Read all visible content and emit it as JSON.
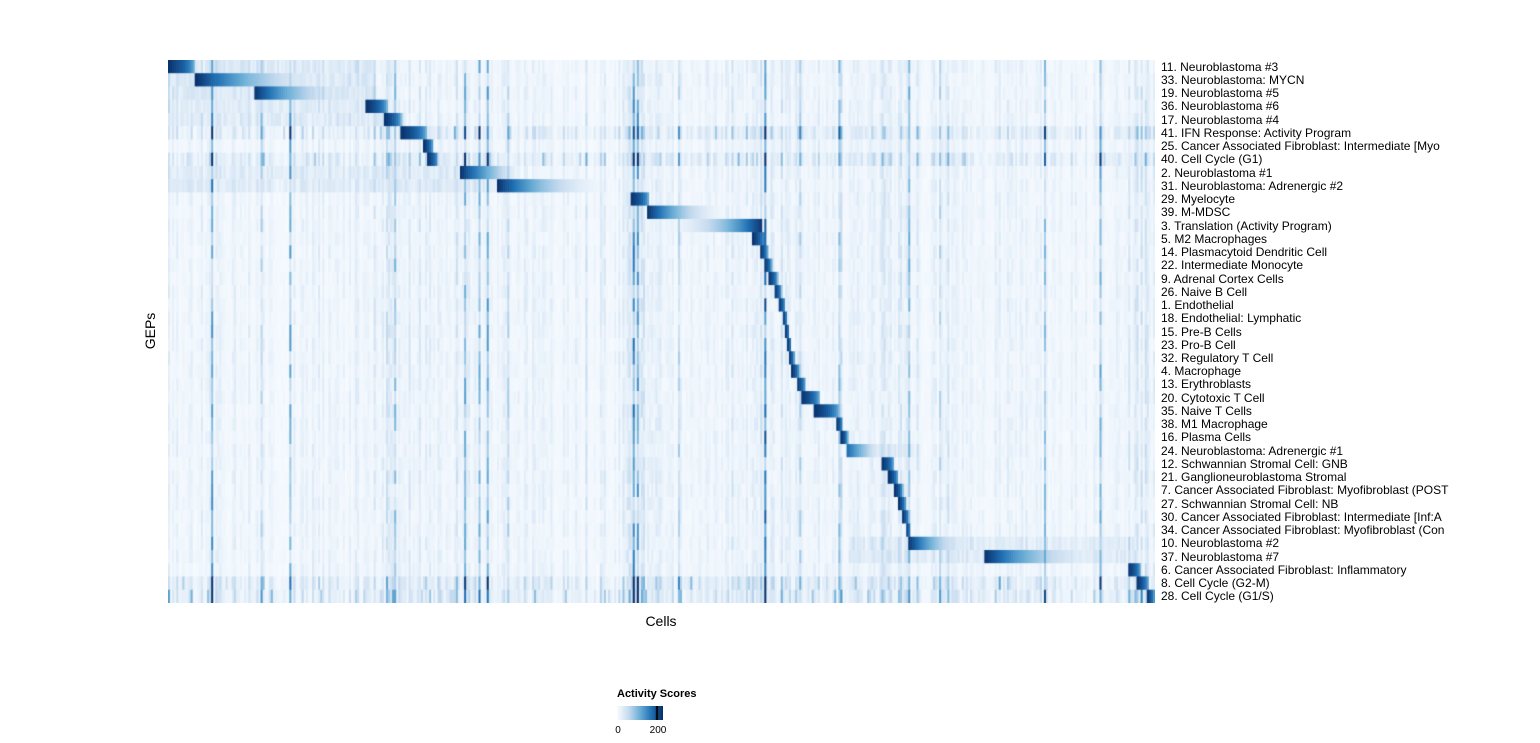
{
  "chart_data": {
    "type": "heatmap",
    "title": "",
    "xlabel": "Cells",
    "ylabel": "GEPs",
    "value_range": [
      0,
      200
    ],
    "colormap": [
      "#f7fbff",
      "#c6dbef",
      "#6baed6",
      "#2171b5",
      "#08306b"
    ],
    "legend": {
      "title": "Activity Scores",
      "min_label": "0",
      "max_label": "200",
      "max_tick_fraction": 0.88
    },
    "streak_regions": [
      [
        0.2,
        0.27
      ],
      [
        0.46,
        0.5
      ],
      [
        0.57,
        0.64
      ],
      [
        0.72,
        0.76
      ],
      [
        0.96,
        1.0
      ]
    ],
    "rows": [
      {
        "label": "11. Neuroblastoma #3",
        "start": 0.0,
        "end": 0.028,
        "wash": [
          0.0,
          0.21,
          0.1
        ]
      },
      {
        "label": "33. Neuroblastoma: MYCN",
        "start": 0.028,
        "end": 0.205,
        "wash": [
          0.0,
          0.21,
          0.1
        ]
      },
      {
        "label": "19. Neuroblastoma #5",
        "start": 0.087,
        "end": 0.213,
        "wash": [
          0.0,
          0.21,
          0.1
        ]
      },
      {
        "label": "36. Neuroblastoma #6",
        "start": 0.2,
        "end": 0.223,
        "wash": [
          0.0,
          0.21,
          0.08
        ]
      },
      {
        "label": "17. Neuroblastoma #4",
        "start": 0.219,
        "end": 0.237,
        "wash": [
          0.0,
          0.24,
          0.08
        ]
      },
      {
        "label": "41. IFN Response: Activity Program",
        "start": 0.235,
        "end": 0.263,
        "noise": 2.0
      },
      {
        "label": "25. Cancer Associated Fibroblast: Intermediate [Myo",
        "start": 0.259,
        "end": 0.269
      },
      {
        "label": "40. Cell Cycle (G1)",
        "start": 0.263,
        "end": 0.274,
        "noise": 2.2
      },
      {
        "label": "2. Neuroblastoma #1",
        "start": 0.296,
        "end": 0.359,
        "wash": [
          0.0,
          0.3,
          0.07
        ]
      },
      {
        "label": "31. Neuroblastoma: Adrenergic #2",
        "start": 0.334,
        "end": 0.468,
        "wash": [
          0.0,
          0.34,
          0.07
        ]
      },
      {
        "label": "29. Myelocyte",
        "start": 0.468,
        "end": 0.488
      },
      {
        "label": "39. M-MDSC",
        "start": 0.486,
        "end": 0.582
      },
      {
        "label": "3. Translation (Activity Program)",
        "start": 0.486,
        "end": 0.602,
        "dark_at": "end"
      },
      {
        "label": "5. M2 Macrophages",
        "start": 0.592,
        "end": 0.606
      },
      {
        "label": "14. Plasmacytoid Dendritic Cell",
        "start": 0.6,
        "end": 0.608
      },
      {
        "label": "22. Intermediate Monocyte",
        "start": 0.604,
        "end": 0.612
      },
      {
        "label": "9. Adrenal Cortex Cells",
        "start": 0.608,
        "end": 0.618
      },
      {
        "label": "26. Naive B Cell",
        "start": 0.614,
        "end": 0.622
      },
      {
        "label": "1. Endothelial",
        "start": 0.618,
        "end": 0.626
      },
      {
        "label": "18. Endothelial: Lymphatic",
        "start": 0.622,
        "end": 0.628
      },
      {
        "label": "15. Pre-B Cells",
        "start": 0.625,
        "end": 0.63
      },
      {
        "label": "23. Pro-B Cell",
        "start": 0.627,
        "end": 0.632
      },
      {
        "label": "32. Regulatory T Cell",
        "start": 0.629,
        "end": 0.635
      },
      {
        "label": "4. Macrophage",
        "start": 0.632,
        "end": 0.64
      },
      {
        "label": "13. Erythroblasts",
        "start": 0.637,
        "end": 0.646
      },
      {
        "label": "20. Cytotoxic T Cell",
        "start": 0.641,
        "end": 0.661
      },
      {
        "label": "35. Naive T Cells",
        "start": 0.654,
        "end": 0.681
      },
      {
        "label": "38. M1 Macrophage",
        "start": 0.677,
        "end": 0.684
      },
      {
        "label": "16. Plasma Cells",
        "start": 0.682,
        "end": 0.689
      },
      {
        "label": "24. Neuroblastoma: Adrenergic #1",
        "start": 0.687,
        "end": 0.727,
        "peak": 0.8,
        "wash": [
          0.69,
          0.76,
          0.06
        ]
      },
      {
        "label": "12. Schwannian Stromal Cell: GNB",
        "start": 0.723,
        "end": 0.736
      },
      {
        "label": "21. Ganglioneuroblastoma Stromal",
        "start": 0.73,
        "end": 0.74
      },
      {
        "label": "7. Cancer Associated Fibroblast: Myofibroblast (POST",
        "start": 0.736,
        "end": 0.745
      },
      {
        "label": "27. Schwannian Stromal Cell: NB",
        "start": 0.74,
        "end": 0.748
      },
      {
        "label": "30. Cancer Associated Fibroblast: Intermediate [Inf:A",
        "start": 0.744,
        "end": 0.751
      },
      {
        "label": "34. Cancer Associated Fibroblast: Myofibroblast (Con",
        "start": 0.747,
        "end": 0.753
      },
      {
        "label": "10. Neuroblastoma #2",
        "start": 0.75,
        "end": 0.831,
        "wash": [
          0.69,
          0.98,
          0.07
        ]
      },
      {
        "label": "37. Neuroblastoma #7",
        "start": 0.827,
        "end": 0.977,
        "wash": [
          0.69,
          0.98,
          0.07
        ]
      },
      {
        "label": "6. Cancer Associated Fibroblast: Inflammatory",
        "start": 0.973,
        "end": 0.986
      },
      {
        "label": "8. Cell Cycle (G2-M)",
        "start": 0.981,
        "end": 0.994,
        "noise": 2.2
      },
      {
        "label": "28. Cell Cycle (G1/S)",
        "start": 0.991,
        "end": 1.0,
        "noise": 2.2
      }
    ]
  }
}
